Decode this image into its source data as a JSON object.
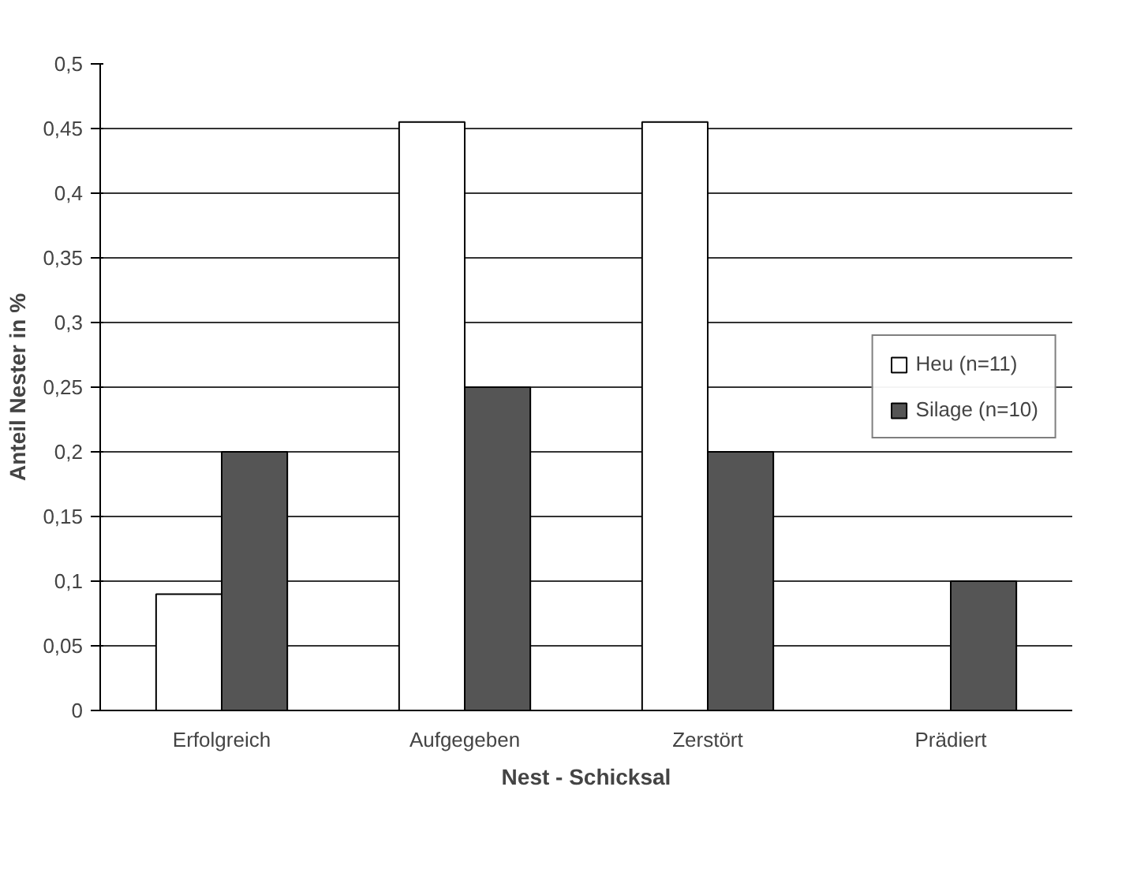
{
  "chart_data": {
    "type": "bar",
    "xlabel": "Nest - Schicksal",
    "ylabel": "Anteil Nester in %",
    "categories": [
      "Erfolgreich",
      "Aufgegeben",
      "Zerstört",
      "Prädiert"
    ],
    "series": [
      {
        "name": "Heu (n=11)",
        "color": "#ffffff",
        "values": [
          0.09,
          0.455,
          0.455,
          null
        ]
      },
      {
        "name": "Silage (n=10)",
        "color": "#555555",
        "values": [
          0.2,
          0.25,
          0.2,
          0.1
        ]
      }
    ],
    "ylim": [
      0,
      0.5
    ],
    "yticks": [
      {
        "value": 0,
        "label": "0"
      },
      {
        "value": 0.05,
        "label": "0,05"
      },
      {
        "value": 0.1,
        "label": "0,1"
      },
      {
        "value": 0.15,
        "label": "0,15"
      },
      {
        "value": 0.2,
        "label": "0,2"
      },
      {
        "value": 0.25,
        "label": "0,25"
      },
      {
        "value": 0.3,
        "label": "0,3"
      },
      {
        "value": 0.35,
        "label": "0,35"
      },
      {
        "value": 0.4,
        "label": "0,4"
      },
      {
        "value": 0.45,
        "label": "0,45"
      },
      {
        "value": 0.5,
        "label": "0,5"
      }
    ],
    "grid": "y",
    "legend": "right"
  }
}
